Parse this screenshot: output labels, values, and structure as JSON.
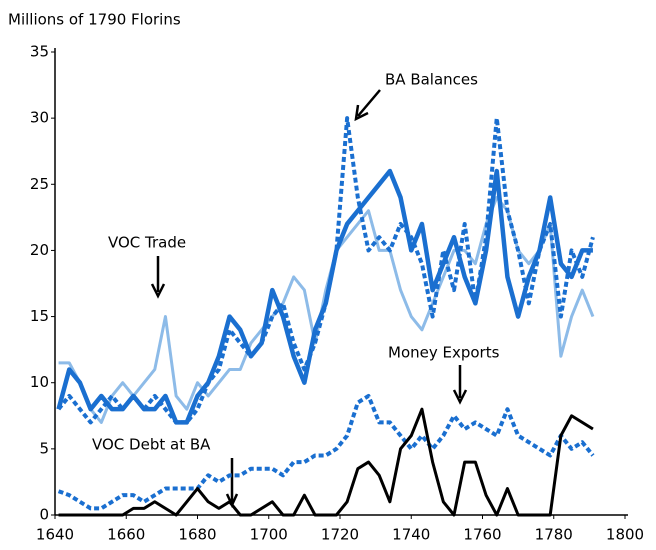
{
  "chart_data": {
    "type": "line",
    "y_axis_label": "Millions of 1790 Florins",
    "x": [
      1641,
      1644,
      1647,
      1650,
      1653,
      1656,
      1659,
      1662,
      1665,
      1668,
      1671,
      1674,
      1677,
      1680,
      1683,
      1686,
      1689,
      1692,
      1695,
      1698,
      1701,
      1704,
      1707,
      1710,
      1713,
      1716,
      1719,
      1722,
      1725,
      1728,
      1731,
      1734,
      1737,
      1740,
      1743,
      1746,
      1749,
      1752,
      1755,
      1758,
      1761,
      1764,
      1767,
      1770,
      1773,
      1776,
      1779,
      1782,
      1785,
      1788,
      1791
    ],
    "series": [
      {
        "name": "VOC Trade",
        "color": "#8dbbe8",
        "style": "solid",
        "values": [
          11.5,
          11.5,
          10,
          8,
          7,
          9,
          10,
          9,
          10,
          11,
          15,
          9,
          8,
          10,
          9,
          10,
          11,
          11,
          13,
          14,
          15,
          16,
          18,
          17,
          13,
          17,
          20,
          21,
          22,
          23,
          20,
          20,
          17,
          15,
          14,
          16,
          18,
          20,
          20,
          19,
          22,
          24,
          23,
          20,
          19,
          20,
          22,
          12,
          15,
          17,
          15
        ]
      },
      {
        "color": "#1a6fd0",
        "style": "solid",
        "values": [
          8,
          11,
          10,
          8,
          9,
          8,
          8,
          9,
          8,
          8,
          9,
          7,
          7,
          9,
          10,
          12,
          15,
          14,
          12,
          13,
          17,
          15,
          12,
          10,
          14,
          16,
          20,
          22,
          23,
          24,
          25,
          26,
          24,
          20,
          22,
          17,
          19,
          21,
          18,
          16,
          20,
          26,
          18,
          15,
          18,
          20,
          24,
          19,
          18,
          20,
          20
        ]
      },
      {
        "name": "BA Balances",
        "color": "#1a6fd0",
        "style": "dashed",
        "values": [
          8,
          9,
          8,
          7,
          8,
          9,
          8,
          9,
          8,
          9,
          8,
          7,
          7,
          8,
          10,
          11,
          14,
          13,
          12,
          13,
          15,
          16,
          13,
          11,
          13,
          16,
          20,
          30,
          24,
          20,
          21,
          20,
          22,
          21,
          19,
          15,
          20,
          17,
          22,
          16,
          21,
          30,
          23,
          20,
          16,
          20,
          22,
          15,
          20,
          18,
          21
        ]
      },
      {
        "name": "VOC Debt at BA",
        "color": "#1a6fd0",
        "style": "dashed",
        "values": [
          1.8,
          1.5,
          1,
          0.5,
          0.5,
          1,
          1.5,
          1.5,
          1,
          1.5,
          2,
          2,
          2,
          2,
          3,
          2.5,
          3,
          3,
          3.5,
          3.5,
          3.5,
          3,
          4,
          4,
          4.5,
          4.5,
          5,
          6,
          8.5,
          9,
          7,
          7,
          6,
          5,
          6,
          5,
          6,
          7.5,
          6.5,
          7,
          6.5,
          6,
          8,
          6,
          5.5,
          5,
          4.5,
          6,
          5,
          5.5,
          4.5
        ]
      },
      {
        "name": "Money Exports",
        "color": "#000000",
        "style": "solid",
        "values": [
          0,
          0,
          0,
          0,
          0,
          0,
          0,
          0.5,
          0.5,
          1,
          0.5,
          0,
          1,
          2,
          1,
          0.5,
          1,
          0,
          0,
          0.5,
          1,
          0,
          0,
          1.5,
          0,
          0,
          0,
          1,
          3.5,
          4,
          3,
          1,
          5,
          6,
          8,
          4,
          1,
          0,
          4,
          4,
          1.5,
          0,
          2,
          0,
          0,
          0,
          0,
          6,
          7.5,
          7,
          6.5
        ]
      }
    ],
    "xlim": [
      1640,
      1800
    ],
    "xticks": [
      1640,
      1660,
      1680,
      1700,
      1720,
      1740,
      1760,
      1780,
      1800
    ],
    "ylim": [
      0,
      35
    ],
    "yticks": [
      0,
      5,
      10,
      15,
      20,
      25,
      30,
      35
    ],
    "grid": false
  }
}
